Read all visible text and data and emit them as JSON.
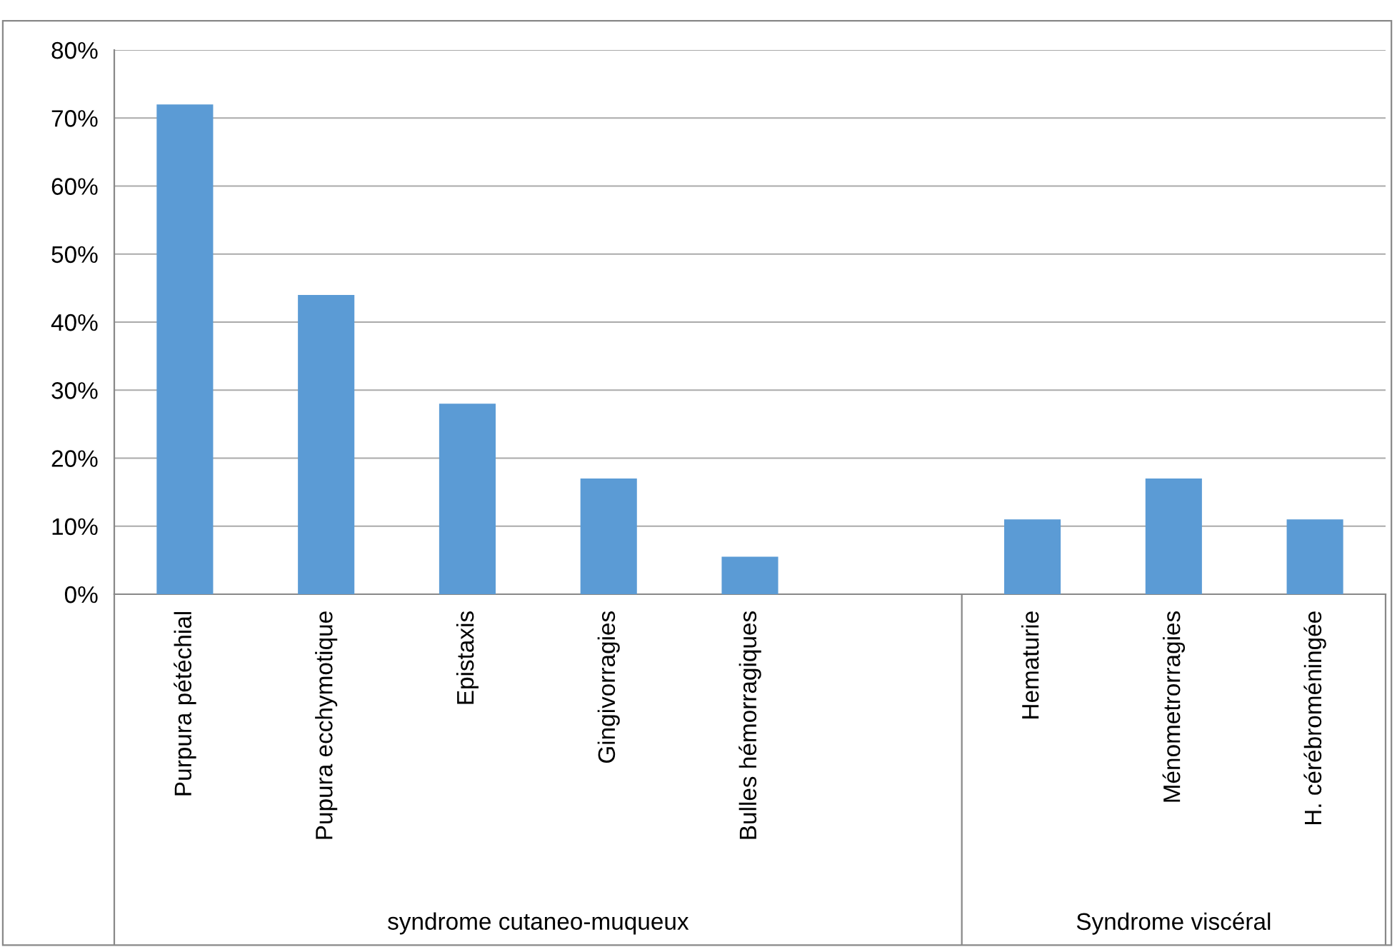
{
  "chart_data": {
    "type": "bar",
    "categories": [
      "Purpura pétéchial",
      "Pupura ecchymotique",
      "Epistaxis",
      "Gingivorragies",
      "Bulles hémorragiques",
      null,
      "Hematurie",
      "Ménometrorragies",
      "H. cérébroméningée"
    ],
    "values": [
      72,
      44,
      28,
      17,
      5.5,
      null,
      11,
      17,
      11
    ],
    "color": "#5b9bd5",
    "ylim": [
      0,
      80
    ],
    "yticks": [
      {
        "value": 0,
        "label": "0%"
      },
      {
        "value": 10,
        "label": "10%"
      },
      {
        "value": 20,
        "label": "20%"
      },
      {
        "value": 30,
        "label": "30%"
      },
      {
        "value": 40,
        "label": "40%"
      },
      {
        "value": 50,
        "label": "50%"
      },
      {
        "value": 60,
        "label": "60%"
      },
      {
        "value": 70,
        "label": "70%"
      },
      {
        "value": 80,
        "label": "80%"
      }
    ],
    "grid": "y",
    "annotations": [
      "syndrome cutaneo-muqueux",
      "Syndrome viscéral"
    ]
  }
}
